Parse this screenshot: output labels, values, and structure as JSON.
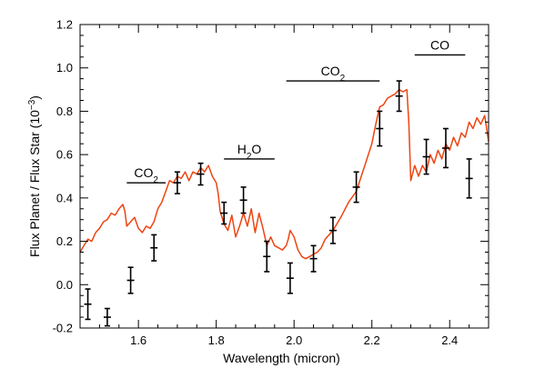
{
  "chart_data": {
    "type": "line",
    "title": "",
    "xlabel": "Wavelength (micron)",
    "ylabel": {
      "main": "Flux Planet / Flux Star (10",
      "exp": "−3",
      "close": ")"
    },
    "xlim": [
      1.45,
      2.5
    ],
    "ylim": [
      -0.2,
      1.2
    ],
    "xticks": [
      "1.6",
      "1.8",
      "2.0",
      "2.2",
      "2.4"
    ],
    "yticks": [
      "-0.2",
      "0.0",
      "0.2",
      "0.4",
      "0.6",
      "0.8",
      "1.0",
      "1.2"
    ],
    "colors": {
      "model": "#ee4411",
      "data": "#000000"
    },
    "series": [
      {
        "kind": "model-spectrum",
        "points": [
          [
            1.45,
            0.15
          ],
          [
            1.46,
            0.18
          ],
          [
            1.47,
            0.21
          ],
          [
            1.48,
            0.2
          ],
          [
            1.49,
            0.24
          ],
          [
            1.5,
            0.26
          ],
          [
            1.51,
            0.29
          ],
          [
            1.52,
            0.3
          ],
          [
            1.53,
            0.33
          ],
          [
            1.54,
            0.32
          ],
          [
            1.55,
            0.35
          ],
          [
            1.56,
            0.37
          ],
          [
            1.565,
            0.34
          ],
          [
            1.57,
            0.27
          ],
          [
            1.58,
            0.29
          ],
          [
            1.59,
            0.31
          ],
          [
            1.6,
            0.26
          ],
          [
            1.61,
            0.24
          ],
          [
            1.62,
            0.27
          ],
          [
            1.63,
            0.26
          ],
          [
            1.64,
            0.29
          ],
          [
            1.65,
            0.35
          ],
          [
            1.66,
            0.38
          ],
          [
            1.67,
            0.43
          ],
          [
            1.68,
            0.48
          ],
          [
            1.69,
            0.47
          ],
          [
            1.7,
            0.5
          ],
          [
            1.71,
            0.49
          ],
          [
            1.72,
            0.52
          ],
          [
            1.73,
            0.48
          ],
          [
            1.74,
            0.52
          ],
          [
            1.75,
            0.51
          ],
          [
            1.76,
            0.54
          ],
          [
            1.77,
            0.52
          ],
          [
            1.78,
            0.55
          ],
          [
            1.79,
            0.5
          ],
          [
            1.8,
            0.47
          ],
          [
            1.805,
            0.42
          ],
          [
            1.81,
            0.34
          ],
          [
            1.82,
            0.28
          ],
          [
            1.83,
            0.25
          ],
          [
            1.84,
            0.32
          ],
          [
            1.85,
            0.22
          ],
          [
            1.86,
            0.27
          ],
          [
            1.87,
            0.33
          ],
          [
            1.88,
            0.27
          ],
          [
            1.89,
            0.35
          ],
          [
            1.9,
            0.24
          ],
          [
            1.91,
            0.33
          ],
          [
            1.92,
            0.26
          ],
          [
            1.93,
            0.18
          ],
          [
            1.94,
            0.22
          ],
          [
            1.95,
            0.18
          ],
          [
            1.96,
            0.17
          ],
          [
            1.97,
            0.16
          ],
          [
            1.98,
            0.18
          ],
          [
            1.985,
            0.21
          ],
          [
            1.99,
            0.25
          ],
          [
            2.0,
            0.22
          ],
          [
            2.01,
            0.16
          ],
          [
            2.02,
            0.13
          ],
          [
            2.03,
            0.12
          ],
          [
            2.04,
            0.13
          ],
          [
            2.05,
            0.14
          ],
          [
            2.06,
            0.15
          ],
          [
            2.07,
            0.17
          ],
          [
            2.08,
            0.21
          ],
          [
            2.1,
            0.25
          ],
          [
            2.12,
            0.31
          ],
          [
            2.14,
            0.38
          ],
          [
            2.16,
            0.43
          ],
          [
            2.18,
            0.54
          ],
          [
            2.2,
            0.65
          ],
          [
            2.21,
            0.74
          ],
          [
            2.22,
            0.82
          ],
          [
            2.23,
            0.83
          ],
          [
            2.24,
            0.86
          ],
          [
            2.25,
            0.87
          ],
          [
            2.26,
            0.88
          ],
          [
            2.27,
            0.9
          ],
          [
            2.28,
            0.89
          ],
          [
            2.29,
            0.9
          ],
          [
            2.295,
            0.75
          ],
          [
            2.3,
            0.48
          ],
          [
            2.31,
            0.55
          ],
          [
            2.32,
            0.5
          ],
          [
            2.33,
            0.55
          ],
          [
            2.34,
            0.52
          ],
          [
            2.35,
            0.6
          ],
          [
            2.36,
            0.56
          ],
          [
            2.37,
            0.62
          ],
          [
            2.38,
            0.58
          ],
          [
            2.39,
            0.65
          ],
          [
            2.4,
            0.62
          ],
          [
            2.41,
            0.68
          ],
          [
            2.42,
            0.64
          ],
          [
            2.43,
            0.7
          ],
          [
            2.44,
            0.68
          ],
          [
            2.45,
            0.75
          ],
          [
            2.46,
            0.72
          ],
          [
            2.47,
            0.77
          ],
          [
            2.48,
            0.74
          ],
          [
            2.49,
            0.78
          ],
          [
            2.5,
            0.66
          ]
        ]
      },
      {
        "kind": "data-with-errorbars",
        "points": [
          {
            "x": 1.47,
            "y": -0.09,
            "err": 0.07
          },
          {
            "x": 1.52,
            "y": -0.15,
            "err": 0.04
          },
          {
            "x": 1.58,
            "y": 0.02,
            "err": 0.06
          },
          {
            "x": 1.64,
            "y": 0.17,
            "err": 0.06
          },
          {
            "x": 1.7,
            "y": 0.47,
            "err": 0.05
          },
          {
            "x": 1.76,
            "y": 0.51,
            "err": 0.05
          },
          {
            "x": 1.82,
            "y": 0.33,
            "err": 0.05
          },
          {
            "x": 1.87,
            "y": 0.39,
            "err": 0.06
          },
          {
            "x": 1.93,
            "y": 0.13,
            "err": 0.07
          },
          {
            "x": 1.99,
            "y": 0.03,
            "err": 0.07
          },
          {
            "x": 2.05,
            "y": 0.12,
            "err": 0.06
          },
          {
            "x": 2.1,
            "y": 0.25,
            "err": 0.06
          },
          {
            "x": 2.16,
            "y": 0.45,
            "err": 0.07
          },
          {
            "x": 2.22,
            "y": 0.72,
            "err": 0.08
          },
          {
            "x": 2.27,
            "y": 0.87,
            "err": 0.07
          },
          {
            "x": 2.34,
            "y": 0.59,
            "err": 0.08
          },
          {
            "x": 2.39,
            "y": 0.63,
            "err": 0.09
          },
          {
            "x": 2.45,
            "y": 0.49,
            "err": 0.09
          }
        ]
      }
    ],
    "annotations": [
      {
        "id": "co2-a",
        "text": "CO",
        "sub": "2",
        "x": [
          1.57,
          1.67
        ],
        "y": 0.47
      },
      {
        "id": "h2o",
        "text": "H",
        "sub": "2",
        "text2": "O",
        "x": [
          1.82,
          1.95
        ],
        "y": 0.58
      },
      {
        "id": "co2-b",
        "text": "CO",
        "sub": "2",
        "x": [
          1.98,
          2.22
        ],
        "y": 0.94
      },
      {
        "id": "co",
        "text": "CO",
        "x": [
          2.31,
          2.44
        ],
        "y": 1.06
      }
    ]
  }
}
